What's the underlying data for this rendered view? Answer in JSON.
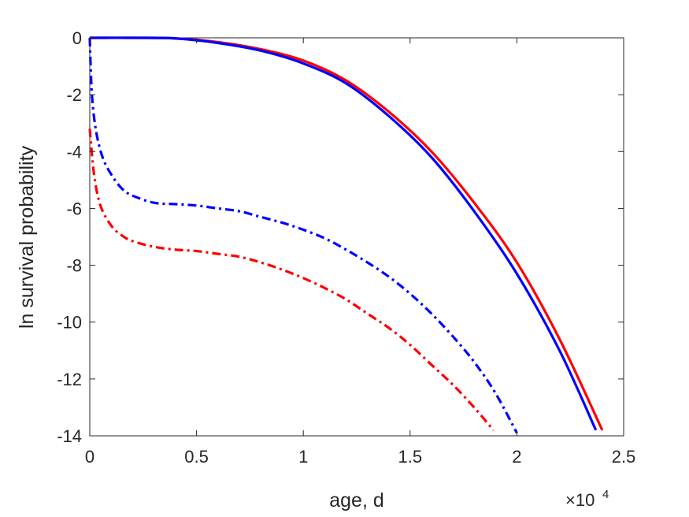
{
  "chart_data": {
    "type": "line",
    "xlabel": "age, d",
    "ylabel": "ln survival probability",
    "x_multiplier": {
      "base": "×10",
      "exponent": "4"
    },
    "xlim": [
      0,
      25000
    ],
    "ylim": [
      -14,
      0
    ],
    "xticks": [
      0,
      5000,
      10000,
      15000,
      20000,
      25000
    ],
    "xtick_labels": [
      "0",
      "0.5",
      "1",
      "1.5",
      "2",
      "2.5"
    ],
    "yticks": [
      0,
      -2,
      -4,
      -6,
      -8,
      -10,
      -12,
      -14
    ],
    "ytick_labels": [
      "0",
      "-2",
      "-4",
      "-6",
      "-8",
      "-10",
      "-12",
      "-14"
    ],
    "grid": false,
    "series": [
      {
        "color": "#ff0000",
        "style": "solid",
        "x": [
          0,
          2000,
          4000,
          6000,
          8000,
          10000,
          12000,
          14000,
          16000,
          18000,
          20000,
          22000,
          24000
        ],
        "y": [
          0,
          0,
          -0.02,
          -0.15,
          -0.4,
          -0.8,
          -1.5,
          -2.6,
          -4.0,
          -5.8,
          -7.9,
          -10.6,
          -13.8
        ]
      },
      {
        "color": "#0000ff",
        "style": "solid",
        "x": [
          0,
          2000,
          4000,
          6000,
          8000,
          10000,
          12000,
          14000,
          16000,
          18000,
          20000,
          22000,
          23700
        ],
        "y": [
          0,
          0,
          -0.02,
          -0.18,
          -0.45,
          -0.9,
          -1.6,
          -2.75,
          -4.2,
          -6.1,
          -8.3,
          -11.0,
          -13.8
        ]
      },
      {
        "color": "#0000ff",
        "style": "dashdot",
        "x": [
          0,
          100,
          300,
          600,
          1000,
          1500,
          2000,
          3000,
          4000,
          5000,
          6000,
          7000,
          8000,
          9000,
          10000,
          11000,
          12000,
          13000,
          14000,
          15000,
          16000,
          17000,
          18000,
          19000,
          20000
        ],
        "y": [
          0,
          -2.0,
          -3.3,
          -4.2,
          -4.8,
          -5.3,
          -5.55,
          -5.8,
          -5.85,
          -5.9,
          -6.0,
          -6.1,
          -6.3,
          -6.5,
          -6.75,
          -7.05,
          -7.45,
          -7.9,
          -8.4,
          -9.0,
          -9.7,
          -10.5,
          -11.4,
          -12.5,
          -13.9
        ]
      },
      {
        "color": "#ff0000",
        "style": "dashdot",
        "x": [
          0,
          200,
          500,
          1000,
          1500,
          2000,
          3000,
          4000,
          5000,
          6000,
          7000,
          8000,
          9000,
          10000,
          11000,
          12000,
          13000,
          14000,
          15000,
          16000,
          17000,
          18000,
          18900
        ],
        "y": [
          -3.2,
          -4.8,
          -5.9,
          -6.6,
          -6.95,
          -7.15,
          -7.35,
          -7.45,
          -7.5,
          -7.6,
          -7.7,
          -7.9,
          -8.15,
          -8.45,
          -8.8,
          -9.2,
          -9.7,
          -10.2,
          -10.8,
          -11.5,
          -12.2,
          -13.0,
          -13.8
        ]
      }
    ]
  }
}
